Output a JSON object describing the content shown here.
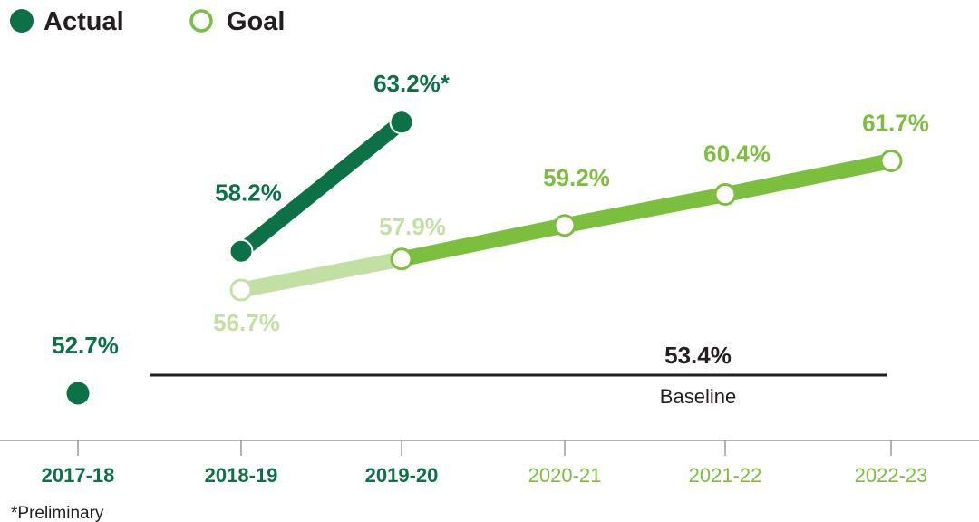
{
  "chart_data": {
    "type": "line",
    "title": "",
    "xlabel": "",
    "ylabel": "",
    "ylim": [
      50,
      65
    ],
    "grid": false,
    "legend_placement": "top-left",
    "categories": [
      "2017-18",
      "2018-19",
      "2019-20",
      "2020-21",
      "2021-22",
      "2022-23"
    ],
    "legend": [
      {
        "name": "Actual",
        "marker": "filled-circle"
      },
      {
        "name": "Goal",
        "marker": "open-circle"
      }
    ],
    "series": [
      {
        "name": "Actual",
        "values": [
          52.7,
          58.2,
          63.2,
          null,
          null,
          null
        ],
        "labels": [
          "52.7%",
          "58.2%",
          "63.2%*",
          "",
          "",
          ""
        ],
        "connected_from_index": 1
      },
      {
        "name": "Goal",
        "values": [
          null,
          56.7,
          57.9,
          59.2,
          60.4,
          61.7
        ],
        "labels": [
          "",
          "56.7%",
          "57.9%",
          "59.2%",
          "60.4%",
          "61.7%"
        ]
      }
    ],
    "baseline": {
      "value": 53.4,
      "value_label": "53.4%",
      "label": "Baseline"
    },
    "footnote": "*Preliminary",
    "colors": {
      "actual": "#0d7148",
      "goal": "#7cbf3f",
      "goal_light": "#c2e0a4",
      "text_dark": "#231f20",
      "axis": "#9a9a9a"
    }
  }
}
